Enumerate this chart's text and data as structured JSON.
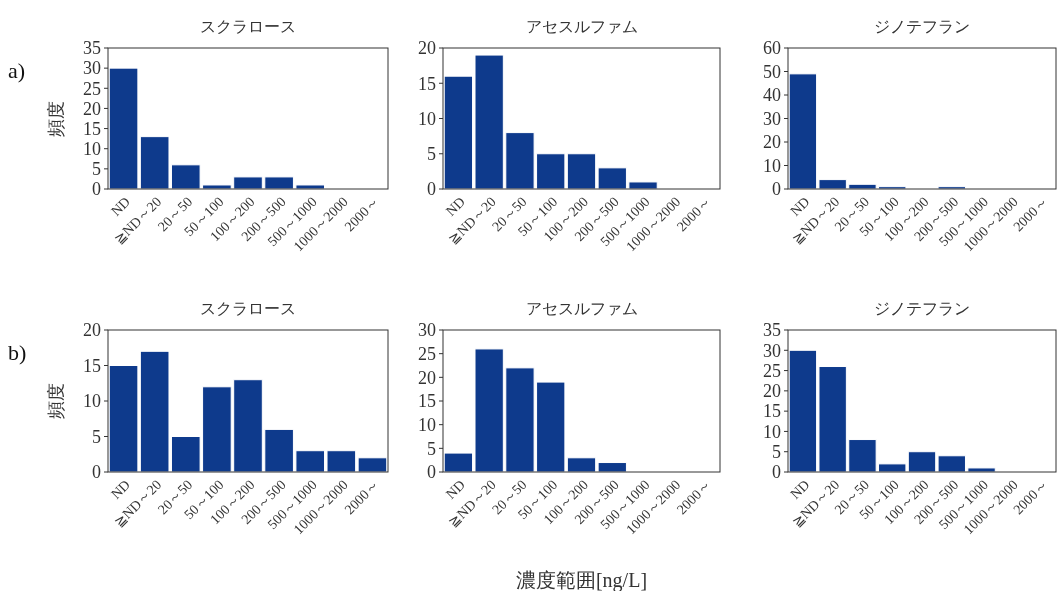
{
  "chart_data": [
    {
      "type": "bar",
      "title": "スクラロース",
      "ylabel": "頻度",
      "annotations": [
        "a)"
      ],
      "categories": [
        "ND",
        "≧ND～20",
        "20～50",
        "50～100",
        "100～200",
        "200～500",
        "500～1000",
        "1000～2000",
        "2000～"
      ],
      "values": [
        30,
        13,
        6,
        1,
        3,
        3,
        1,
        0,
        0
      ],
      "color": "#0e3a8c",
      "ylim": [
        0,
        35
      ],
      "yticks": [
        0,
        5,
        10,
        15,
        20,
        25,
        30,
        35
      ],
      "grid": false
    },
    {
      "type": "bar",
      "title": "アセスルファム",
      "categories": [
        "ND",
        "≧ND～20",
        "20～50",
        "50～100",
        "100～200",
        "200～500",
        "500～1000",
        "1000～2000",
        "2000～"
      ],
      "values": [
        16,
        19,
        8,
        5,
        5,
        3,
        1,
        0,
        0
      ],
      "color": "#0e3a8c",
      "ylim": [
        0,
        20
      ],
      "yticks": [
        0,
        5,
        10,
        15,
        20
      ],
      "grid": false
    },
    {
      "type": "bar",
      "title": "ジノテフラン",
      "categories": [
        "ND",
        "≧ND～20",
        "20～50",
        "50～100",
        "100～200",
        "200～500",
        "500～1000",
        "1000～2000",
        "2000～"
      ],
      "values": [
        49,
        4,
        2,
        1,
        0,
        1,
        0,
        0,
        0
      ],
      "color": "#0e3a8c",
      "ylim": [
        0,
        60
      ],
      "yticks": [
        0,
        10,
        20,
        30,
        40,
        50,
        60
      ],
      "grid": false
    },
    {
      "type": "bar",
      "title": "スクラロース",
      "ylabel": "頻度",
      "annotations": [
        "b)"
      ],
      "categories": [
        "ND",
        "≧ND～20",
        "20～50",
        "50～100",
        "100～200",
        "200～500",
        "500～1000",
        "1000～2000",
        "2000～"
      ],
      "values": [
        15,
        17,
        5,
        12,
        13,
        6,
        3,
        3,
        2
      ],
      "color": "#0e3a8c",
      "ylim": [
        0,
        20
      ],
      "yticks": [
        0,
        5,
        10,
        15,
        20
      ],
      "grid": false
    },
    {
      "type": "bar",
      "title": "アセスルファム",
      "xlabel": "濃度範囲[ng/L]",
      "categories": [
        "ND",
        "≧ND～20",
        "20～50",
        "50～100",
        "100～200",
        "200～500",
        "500～1000",
        "1000～2000",
        "2000～"
      ],
      "values": [
        4,
        26,
        22,
        19,
        3,
        2,
        0,
        0,
        0
      ],
      "color": "#0e3a8c",
      "ylim": [
        0,
        30
      ],
      "yticks": [
        0,
        5,
        10,
        15,
        20,
        25,
        30
      ],
      "grid": false
    },
    {
      "type": "bar",
      "title": "ジノテフラン",
      "categories": [
        "ND",
        "≧ND～20",
        "20～50",
        "50～100",
        "100～200",
        "200～500",
        "500～1000",
        "1000～2000",
        "2000～"
      ],
      "values": [
        30,
        26,
        8,
        2,
        5,
        4,
        1,
        0,
        0
      ],
      "color": "#0e3a8c",
      "ylim": [
        0,
        35
      ],
      "yticks": [
        0,
        5,
        10,
        15,
        20,
        25,
        30,
        35
      ],
      "grid": false
    }
  ]
}
